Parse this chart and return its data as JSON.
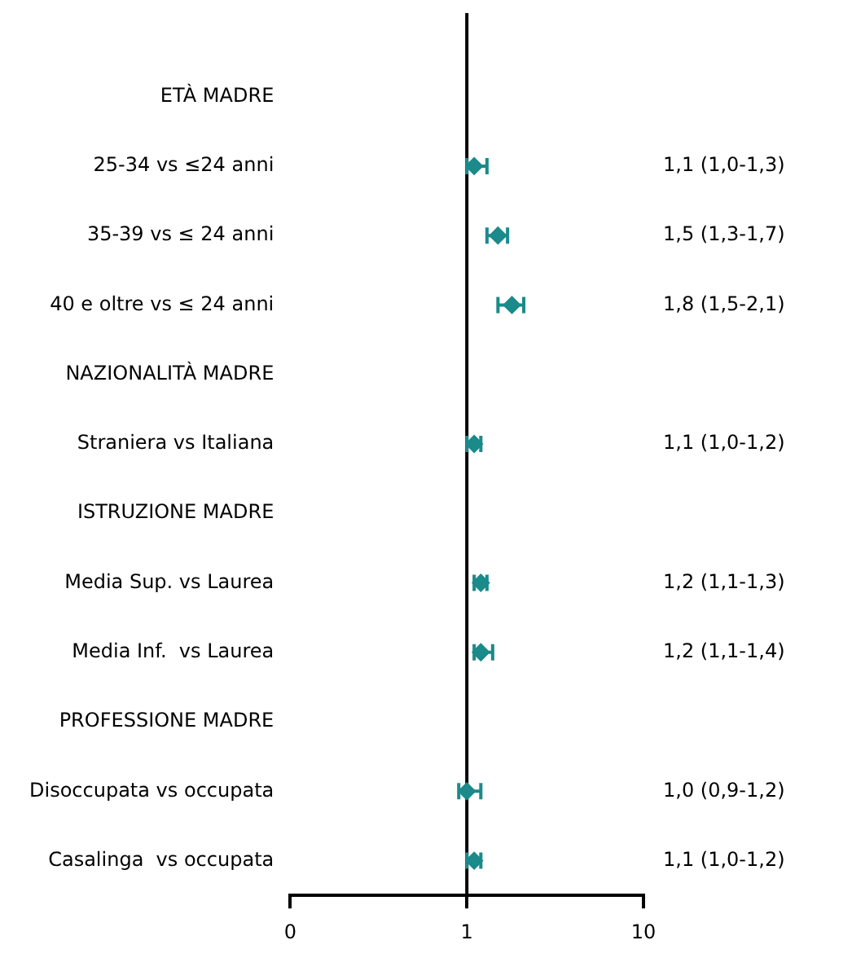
{
  "chart_data": {
    "type": "scatter",
    "orientation": "horizontal",
    "categories": [
      "ETÀ MADRE",
      "25-34 vs ≤24 anni",
      "35-39 vs ≤ 24 anni",
      "40 e oltre vs ≤ 24 anni",
      "NAZIONALITÀ MADRE",
      "Straniera vs Italiana",
      "ISTRUZIONE MADRE",
      "Media Sup. vs Laurea",
      "Media Inf.  vs Laurea",
      "PROFESSIONE MADRE",
      "Disoccupata vs occupata",
      "Casalinga  vs occupata"
    ],
    "values": [
      null,
      1.1,
      1.5,
      1.8,
      null,
      1.1,
      null,
      1.2,
      1.2,
      null,
      1.0,
      1.1
    ],
    "errors": [
      null,
      [
        1.0,
        1.3
      ],
      [
        1.3,
        1.7
      ],
      [
        1.5,
        2.1
      ],
      null,
      [
        1.0,
        1.2
      ],
      null,
      [
        1.1,
        1.3
      ],
      [
        1.1,
        1.4
      ],
      null,
      [
        0.9,
        1.2
      ],
      [
        1.0,
        1.2
      ]
    ],
    "value_labels": [
      null,
      "1,1 (1,0-1,3)",
      "1,5 (1,3-1,7)",
      "1,8 (1,5-2,1)",
      null,
      "1,1 (1,0-1,2)",
      null,
      "1,2 (1,1-1,3)",
      "1,2 (1,1-1,4)",
      null,
      "1,0 (0,9-1,2)",
      "1,1 (1,0-1,2)"
    ],
    "color": "#1b8a8a",
    "marker": "diamond",
    "log": "x",
    "xlim": [
      0.1,
      10
    ],
    "xticks": [
      {
        "value": 0.1,
        "label": "0"
      },
      1,
      10
    ],
    "ref_lines": [
      {
        "axis": "x",
        "value": 1,
        "color": "#000000"
      }
    ],
    "grid": false,
    "legend": false
  }
}
